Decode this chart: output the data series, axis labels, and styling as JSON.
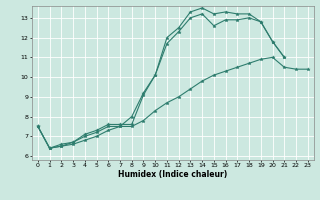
{
  "title": "",
  "xlabel": "Humidex (Indice chaleur)",
  "bg_color": "#cce8e0",
  "grid_color": "#ffffff",
  "line_color": "#2e7d6e",
  "xlim_min": -0.5,
  "xlim_max": 23.5,
  "ylim_min": 5.8,
  "ylim_max": 13.6,
  "yticks": [
    6,
    7,
    8,
    9,
    10,
    11,
    12,
    13
  ],
  "xticks": [
    0,
    1,
    2,
    3,
    4,
    5,
    6,
    7,
    8,
    9,
    10,
    11,
    12,
    13,
    14,
    15,
    16,
    17,
    18,
    19,
    20,
    21,
    22,
    23
  ],
  "line1_x": [
    0,
    1,
    2,
    3,
    4,
    5,
    6,
    7,
    8,
    9,
    10,
    11,
    12,
    13,
    14,
    15,
    16,
    17,
    18,
    19,
    20,
    21
  ],
  "line1_y": [
    7.5,
    6.4,
    6.5,
    6.7,
    7.0,
    7.2,
    7.5,
    7.5,
    8.0,
    9.2,
    10.1,
    12.0,
    12.5,
    13.3,
    13.5,
    13.2,
    13.3,
    13.2,
    13.2,
    12.8,
    11.8,
    11.0
  ],
  "line2_x": [
    0,
    1,
    2,
    3,
    4,
    5,
    6,
    7,
    8,
    9,
    10,
    11,
    12,
    13,
    14,
    15,
    16,
    17,
    18,
    19,
    20,
    21
  ],
  "line2_y": [
    7.5,
    6.4,
    6.6,
    6.7,
    7.1,
    7.3,
    7.6,
    7.6,
    7.6,
    9.1,
    10.1,
    11.7,
    12.3,
    13.0,
    13.2,
    12.6,
    12.9,
    12.9,
    13.0,
    12.8,
    11.8,
    11.0
  ],
  "line3_x": [
    0,
    1,
    2,
    3,
    4,
    5,
    6,
    7,
    8,
    9,
    10,
    11,
    12,
    13,
    14,
    15,
    16,
    17,
    18,
    19,
    20,
    21,
    22,
    23
  ],
  "line3_y": [
    7.5,
    6.4,
    6.5,
    6.6,
    6.8,
    7.0,
    7.3,
    7.5,
    7.5,
    7.8,
    8.3,
    8.7,
    9.0,
    9.4,
    9.8,
    10.1,
    10.3,
    10.5,
    10.7,
    10.9,
    11.0,
    10.5,
    10.4,
    10.4
  ]
}
